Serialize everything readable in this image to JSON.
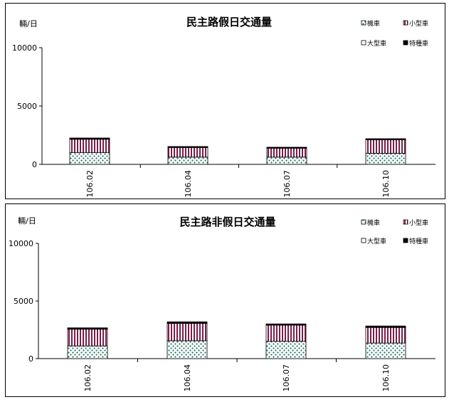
{
  "chart_data": [
    {
      "type": "bar",
      "stacked": true,
      "title": "民主路假日交通量",
      "ylabel": "輛/日",
      "ylim": [
        0,
        10000
      ],
      "yticks": [
        "0",
        "5000",
        "10000"
      ],
      "categories": [
        "106.02",
        "106.04",
        "106.07",
        "106.10"
      ],
      "legend_position": "top-right",
      "series": [
        {
          "name": "機車",
          "values": [
            1000,
            620,
            620,
            950
          ]
        },
        {
          "name": "小型車",
          "values": [
            1150,
            830,
            770,
            1150
          ]
        },
        {
          "name": "大型車",
          "values": [
            30,
            20,
            20,
            30
          ]
        },
        {
          "name": "特種車",
          "values": [
            80,
            60,
            60,
            70
          ]
        }
      ]
    },
    {
      "type": "bar",
      "stacked": true,
      "title": "民主路非假日交通量",
      "ylabel": "輛/日",
      "ylim": [
        0,
        10000
      ],
      "yticks": [
        "0",
        "5000",
        "10000"
      ],
      "categories": [
        "106.02",
        "106.04",
        "106.07",
        "106.10"
      ],
      "legend_position": "top-right",
      "series": [
        {
          "name": "機車",
          "values": [
            1100,
            1550,
            1500,
            1350
          ]
        },
        {
          "name": "小型車",
          "values": [
            1450,
            1500,
            1400,
            1350
          ]
        },
        {
          "name": "大型車",
          "values": [
            40,
            40,
            40,
            40
          ]
        },
        {
          "name": "特種車",
          "values": [
            80,
            100,
            70,
            90
          ]
        }
      ]
    }
  ],
  "series_styles": [
    "dots-green",
    "stripes-maroon",
    "empty",
    "solid-black"
  ],
  "colors": {
    "dots": "#1f6f5f",
    "stripes": "#7b1e4a",
    "fill_solid": "#000000"
  }
}
